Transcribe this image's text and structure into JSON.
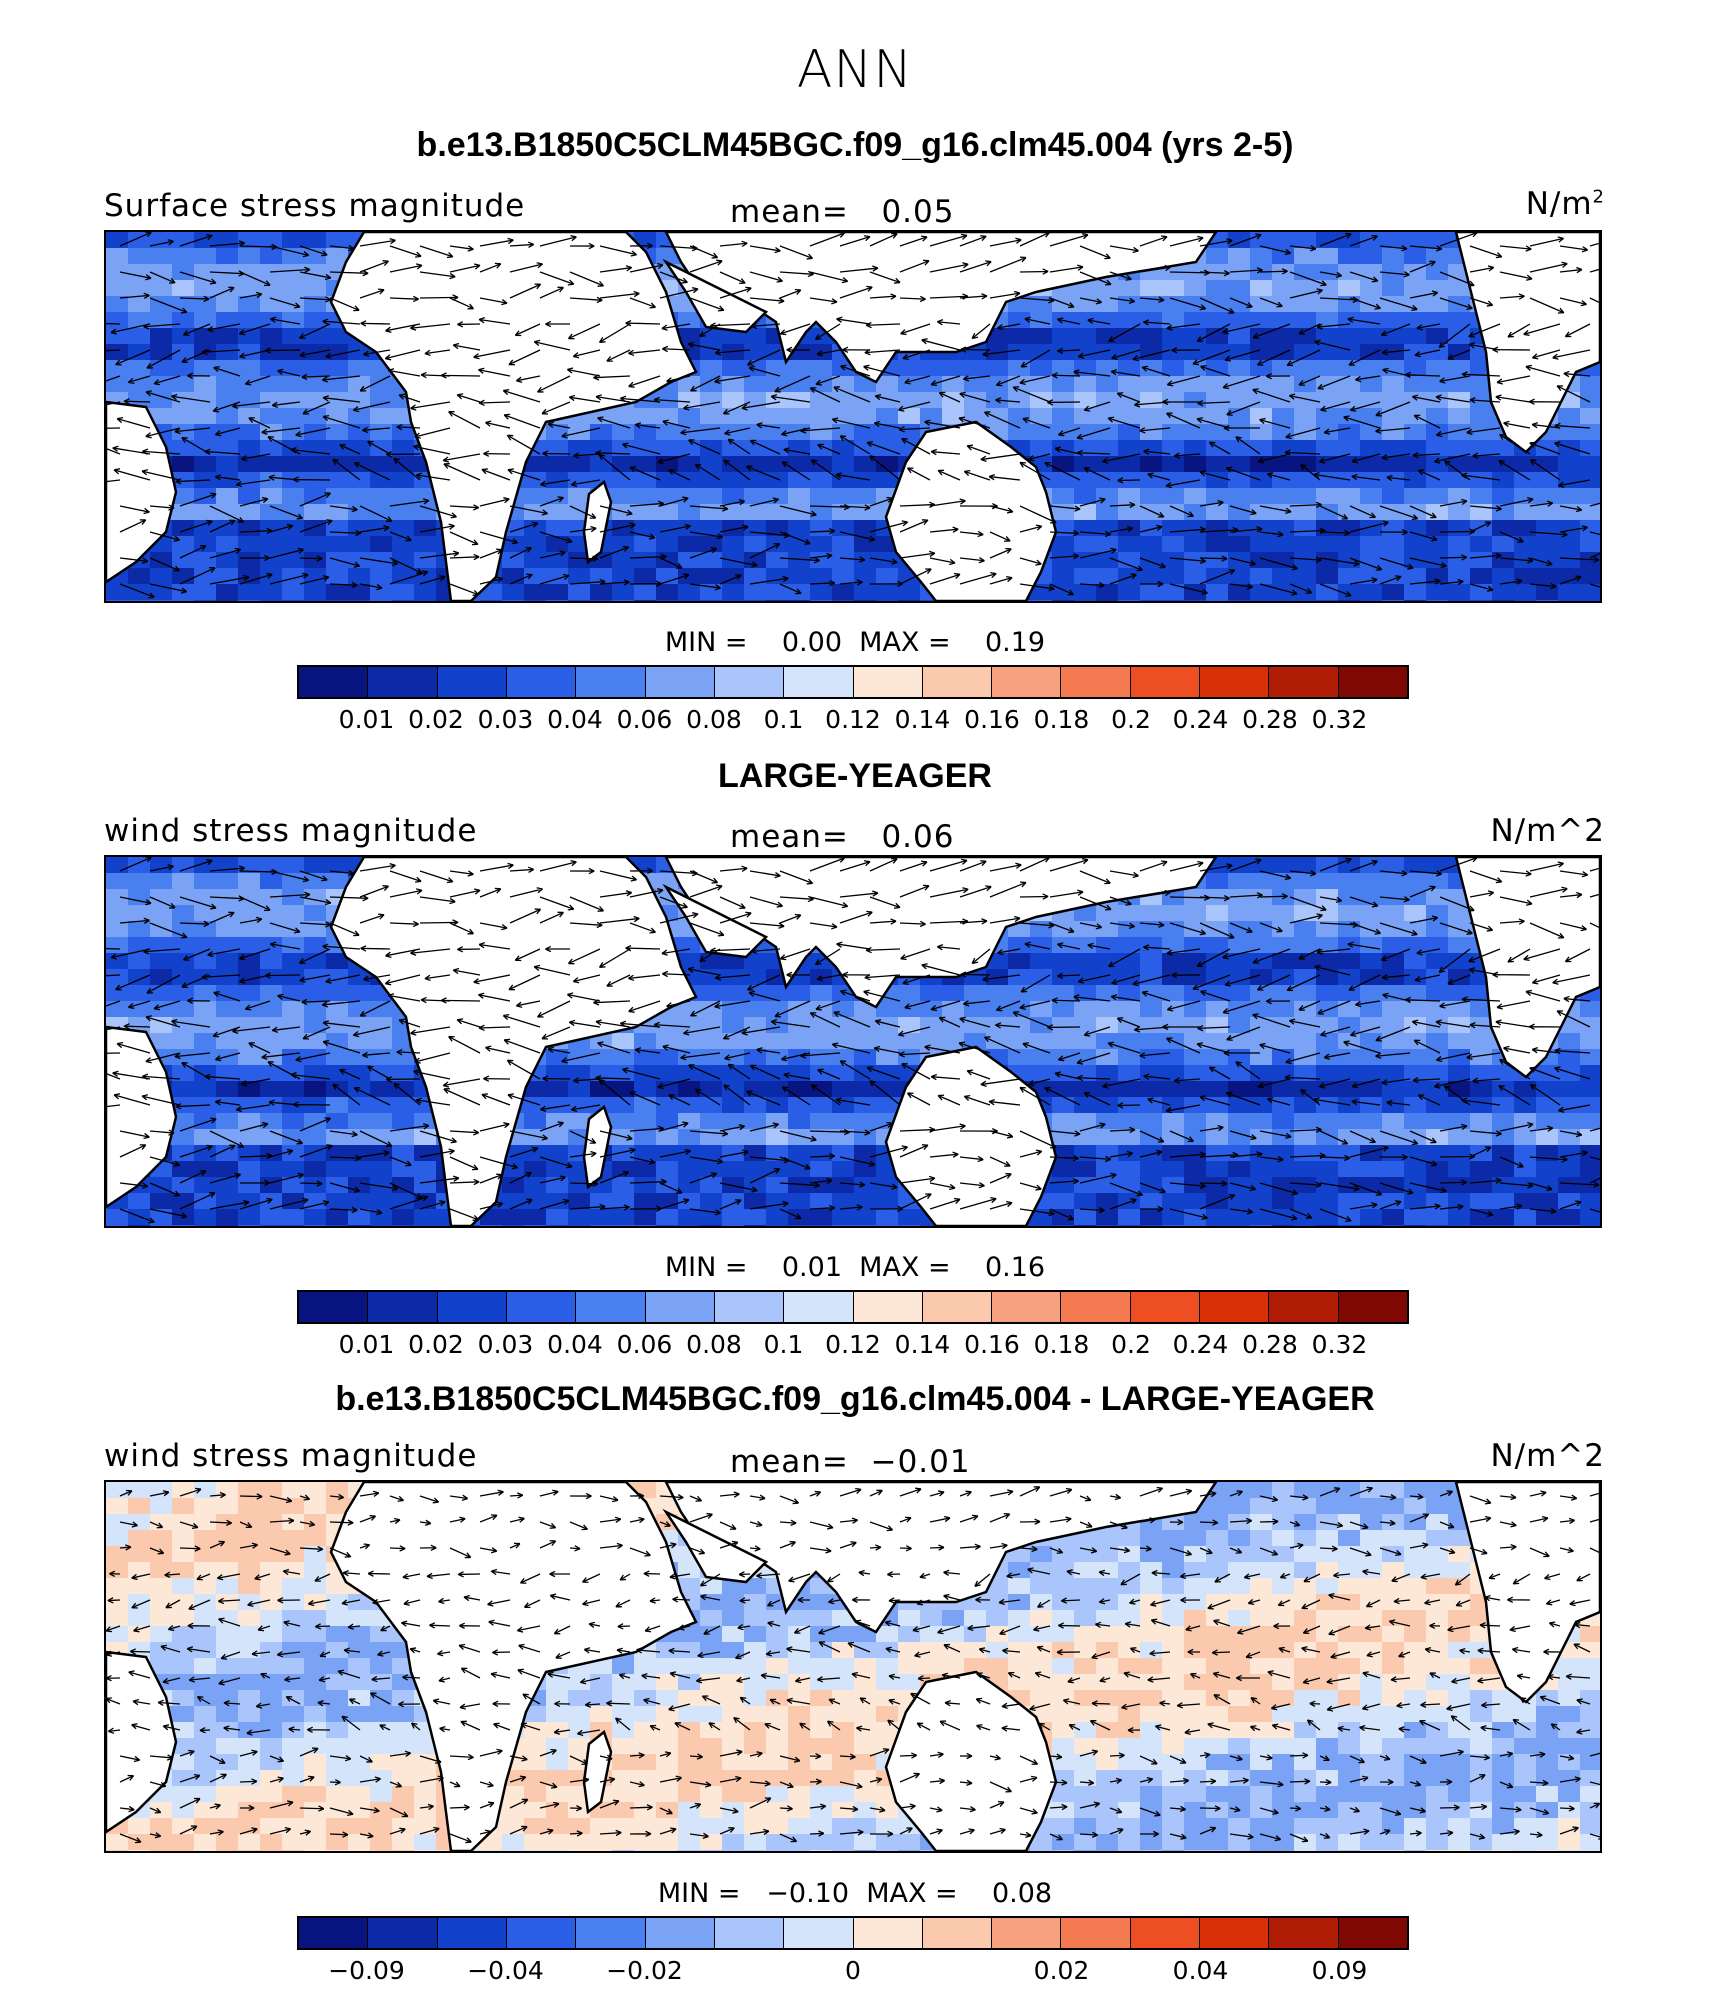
{
  "figure": {
    "season": "ANN",
    "panels": [
      {
        "title": "b.e13.B1850C5CLM45BGC.f09_g16.clm45.004 (yrs 2-5)",
        "variable": "Surface stress magnitude",
        "mean_label": "mean=   0.05",
        "unit_base": "N/m",
        "unit_sup": "2",
        "minmax": "MIN =    0.00  MAX =    0.19",
        "colorbar_labels": [
          "0.01",
          "0.02",
          "0.03",
          "0.04",
          "0.06",
          "0.08",
          "0.1",
          "0.12",
          "0.14",
          "0.16",
          "0.18",
          "0.2",
          "0.24",
          "0.28",
          "0.32"
        ]
      },
      {
        "title": "LARGE-YEAGER",
        "variable": "wind stress magnitude",
        "mean_label": "mean=   0.06",
        "unit": "N/m^2",
        "minmax": "MIN =    0.01  MAX =    0.16",
        "colorbar_labels": [
          "0.01",
          "0.02",
          "0.03",
          "0.04",
          "0.06",
          "0.08",
          "0.1",
          "0.12",
          "0.14",
          "0.16",
          "0.18",
          "0.2",
          "0.24",
          "0.28",
          "0.32"
        ]
      },
      {
        "title": "b.e13.B1850C5CLM45BGC.f09_g16.clm45.004 - LARGE-YEAGER",
        "variable": "wind stress magnitude",
        "mean_label": "mean=  −0.01",
        "unit": "N/m^2",
        "minmax": "MIN =   −0.10  MAX =    0.08",
        "colorbar_labels": [
          "−0.09",
          "−0.04",
          "−0.02",
          "0",
          "0.02",
          "0.04",
          "0.09"
        ]
      }
    ]
  },
  "colors": {
    "scale": [
      "#08147f",
      "#0c2aa8",
      "#1242cc",
      "#2a5ee6",
      "#4a7ff0",
      "#7aa3f6",
      "#a9c5fb",
      "#d4e5fb",
      "#fde8d8",
      "#fbc9ae",
      "#f8a17f",
      "#f47a52",
      "#ee4f22",
      "#d93008",
      "#b01c06",
      "#7f0704"
    ],
    "land": "#ffffff",
    "coast": "#000000"
  }
}
